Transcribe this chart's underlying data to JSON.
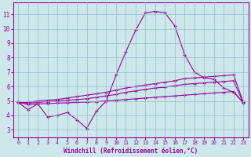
{
  "xlabel": "Windchill (Refroidissement éolien,°C)",
  "bg_color": "#cce8ea",
  "line_color": "#990099",
  "xlim": [
    -0.5,
    23.5
  ],
  "ylim": [
    2.5,
    11.8
  ],
  "yticks": [
    3,
    4,
    5,
    6,
    7,
    8,
    9,
    10,
    11
  ],
  "xticks": [
    0,
    1,
    2,
    3,
    4,
    5,
    6,
    7,
    8,
    9,
    10,
    11,
    12,
    13,
    14,
    15,
    16,
    17,
    18,
    19,
    20,
    21,
    22,
    23
  ],
  "grid_color": "#99bbcc",
  "line1_x": [
    0,
    1,
    2,
    3,
    4,
    5,
    6,
    7,
    8,
    9,
    10,
    11,
    12,
    13,
    14,
    15,
    16,
    17,
    18,
    19,
    20,
    21,
    22,
    23
  ],
  "line1_y": [
    4.9,
    4.4,
    4.8,
    3.9,
    4.0,
    4.2,
    3.7,
    3.1,
    4.3,
    5.0,
    6.8,
    8.4,
    9.9,
    11.1,
    11.2,
    11.1,
    10.2,
    8.2,
    7.0,
    6.6,
    6.5,
    5.9,
    5.6,
    4.9
  ],
  "line2_x": [
    0,
    1,
    2,
    3,
    4,
    5,
    6,
    7,
    8,
    9,
    10,
    11,
    12,
    13,
    14,
    15,
    16,
    17,
    18,
    19,
    20,
    21,
    22,
    23
  ],
  "line2_y": [
    4.9,
    4.9,
    5.0,
    5.05,
    5.1,
    5.2,
    5.3,
    5.4,
    5.5,
    5.6,
    5.75,
    5.9,
    6.0,
    6.1,
    6.2,
    6.3,
    6.4,
    6.55,
    6.6,
    6.65,
    6.7,
    6.75,
    6.8,
    4.9
  ],
  "line3_x": [
    0,
    1,
    2,
    3,
    4,
    5,
    6,
    7,
    8,
    9,
    10,
    11,
    12,
    13,
    14,
    15,
    16,
    17,
    18,
    19,
    20,
    21,
    22,
    23
  ],
  "line3_y": [
    4.9,
    4.85,
    4.9,
    4.95,
    5.0,
    5.05,
    5.1,
    5.15,
    5.25,
    5.35,
    5.45,
    5.6,
    5.7,
    5.8,
    5.9,
    5.95,
    6.05,
    6.15,
    6.2,
    6.25,
    6.3,
    6.35,
    6.4,
    4.85
  ],
  "line4_x": [
    0,
    1,
    2,
    3,
    4,
    5,
    6,
    7,
    8,
    9,
    10,
    11,
    12,
    13,
    14,
    15,
    16,
    17,
    18,
    19,
    20,
    21,
    22,
    23
  ],
  "line4_y": [
    4.9,
    4.75,
    4.8,
    4.82,
    4.85,
    4.87,
    4.9,
    4.92,
    4.95,
    5.0,
    5.05,
    5.1,
    5.15,
    5.2,
    5.25,
    5.3,
    5.35,
    5.4,
    5.45,
    5.5,
    5.55,
    5.6,
    5.65,
    4.85
  ]
}
